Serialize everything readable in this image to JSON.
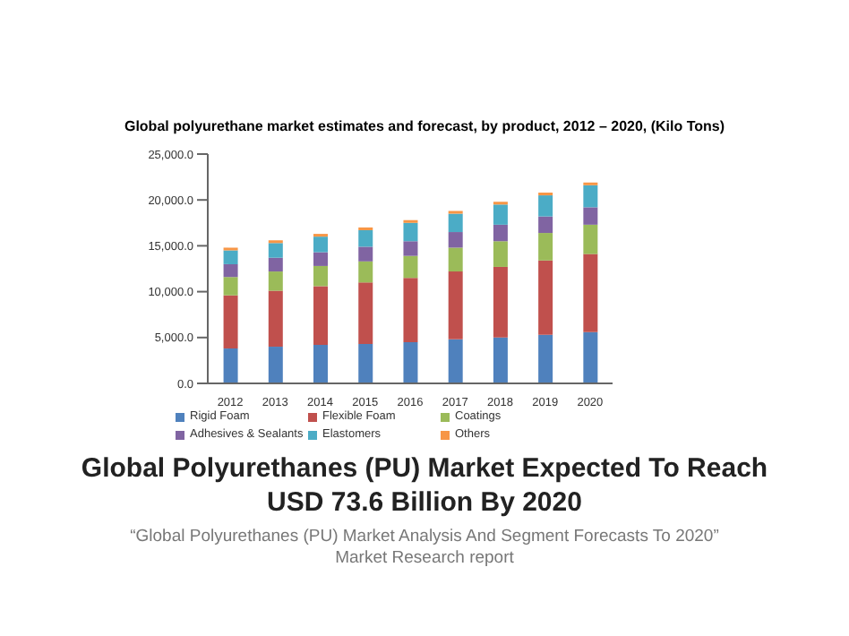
{
  "chart_data": {
    "type": "bar",
    "stacked": true,
    "title": "Global polyurethane market estimates and forecast, by product, 2012 – 2020, (Kilo Tons)",
    "categories": [
      "2012",
      "2013",
      "2014",
      "2015",
      "2016",
      "2017",
      "2018",
      "2019",
      "2020"
    ],
    "series": [
      {
        "name": "Rigid Foam",
        "color": "#4f81bd",
        "values": [
          3800,
          4000,
          4200,
          4300,
          4500,
          4800,
          5000,
          5300,
          5600
        ]
      },
      {
        "name": "Flexible Foam",
        "color": "#c0504d",
        "values": [
          5800,
          6100,
          6400,
          6700,
          7000,
          7400,
          7700,
          8100,
          8500
        ]
      },
      {
        "name": "Coatings",
        "color": "#9bbb59",
        "values": [
          2000,
          2100,
          2200,
          2300,
          2400,
          2600,
          2800,
          3000,
          3200
        ]
      },
      {
        "name": "Adhesives & Sealants",
        "color": "#8064a2",
        "values": [
          1400,
          1500,
          1500,
          1600,
          1600,
          1700,
          1800,
          1800,
          1900
        ]
      },
      {
        "name": "Elastomers",
        "color": "#4bacc6",
        "values": [
          1500,
          1600,
          1700,
          1800,
          2000,
          2000,
          2200,
          2300,
          2400
        ]
      },
      {
        "name": "Others",
        "color": "#f79646",
        "values": [
          300,
          300,
          300,
          300,
          300,
          300,
          300,
          300,
          300
        ]
      }
    ],
    "ylim": [
      0,
      25000
    ],
    "yticks": [
      {
        "value": 0,
        "label": "0.0"
      },
      {
        "value": 5000,
        "label": "5,000.0"
      },
      {
        "value": 10000,
        "label": "10,000.0"
      },
      {
        "value": 15000,
        "label": "15,000.0"
      },
      {
        "value": 20000,
        "label": "20,000.0"
      },
      {
        "value": 25000,
        "label": "25,000.0"
      }
    ],
    "grid": false,
    "legend": "bottom",
    "annotations": [
      "Global Polyurethanes (PU) Market Expected To Reach USD 73.6 Billion By 2020",
      "“Global Polyurethanes (PU) Market Analysis And Segment Forecasts To 2020” Market Research report"
    ]
  }
}
